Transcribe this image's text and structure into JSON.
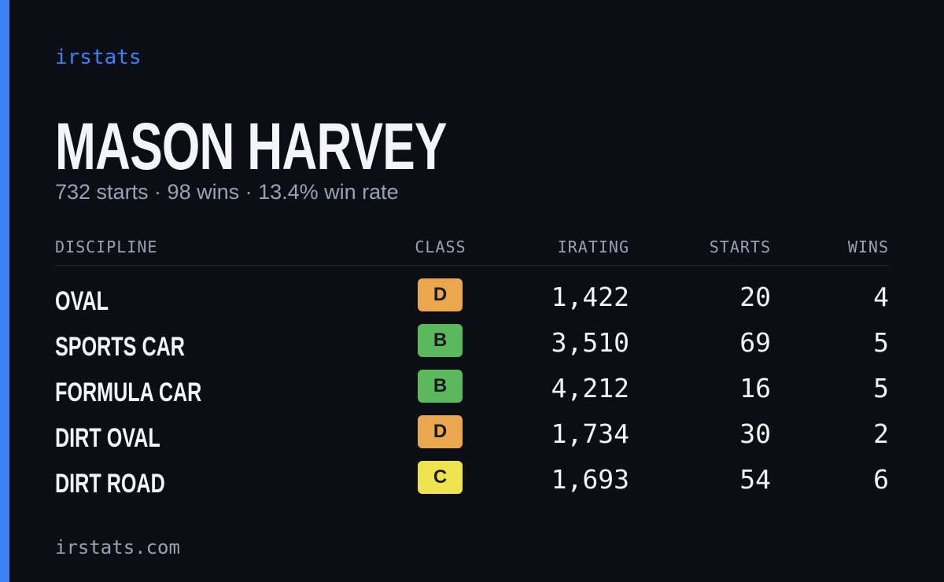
{
  "brand": "irstats",
  "name": "MASON HARVEY",
  "summary": "732 starts · 98 wins · 13.4% win rate",
  "table": {
    "headers": [
      "DISCIPLINE",
      "CLASS",
      "IRATING",
      "STARTS",
      "WINS"
    ],
    "rows": [
      {
        "discipline": "OVAL",
        "class": "D",
        "class_color": "#eaa74e",
        "irating": "1,422",
        "starts": "20",
        "wins": "4"
      },
      {
        "discipline": "SPORTS CAR",
        "class": "B",
        "class_color": "#5cb85c",
        "irating": "3,510",
        "starts": "69",
        "wins": "5"
      },
      {
        "discipline": "FORMULA CAR",
        "class": "B",
        "class_color": "#5cb85c",
        "irating": "4,212",
        "starts": "16",
        "wins": "5"
      },
      {
        "discipline": "DIRT OVAL",
        "class": "D",
        "class_color": "#eaa74e",
        "irating": "1,734",
        "starts": "30",
        "wins": "2"
      },
      {
        "discipline": "DIRT ROAD",
        "class": "C",
        "class_color": "#ede34e",
        "irating": "1,693",
        "starts": "54",
        "wins": "6"
      }
    ]
  },
  "footer": "irstats.com"
}
